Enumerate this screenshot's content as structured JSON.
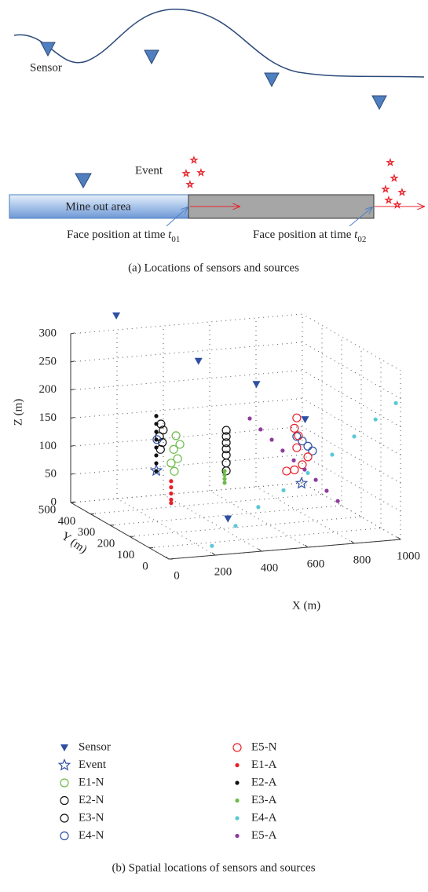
{
  "figure_a": {
    "sensor_label": "Sensor",
    "event_label": "Event",
    "area_label": "Mine out area",
    "face_labels": [
      {
        "text": "Face position at time",
        "var": "t",
        "sub": "01"
      },
      {
        "text": "Face position at time",
        "var": "t",
        "sub": "02"
      }
    ],
    "caption": "(a) Locations of sensors and sources"
  },
  "chart_data": {
    "type": "scatter3d",
    "xlabel": "X (m)",
    "ylabel": "Y (m)",
    "zlabel": "Z (m)",
    "xlim": [
      0,
      1000
    ],
    "ylim": [
      0,
      500
    ],
    "zlim": [
      0,
      300
    ],
    "xticks": [
      0,
      200,
      400,
      600,
      800,
      1000
    ],
    "yticks": [
      0,
      100,
      200,
      300,
      400,
      500
    ],
    "zticks": [
      0,
      50,
      100,
      150,
      200,
      250,
      300
    ],
    "grid": true,
    "series": [
      {
        "name": "Sensor",
        "color": "#2e4fa3",
        "marker": "triangle",
        "x": [
          180,
          450,
          700,
          450,
          800
        ],
        "y": [
          480,
          380,
          380,
          230,
          250
        ],
        "z": [
          330,
          260,
          210,
          10,
          170
        ]
      },
      {
        "name": "Event",
        "color": "#2e4fa3",
        "marker": "star",
        "x": [
          200,
          700
        ],
        "y": [
          300,
          150
        ],
        "z": [
          90,
          80
        ]
      },
      {
        "name": "E1-N",
        "color": "#6dbb4a",
        "marker": "circle",
        "x": [
          285,
          302,
          275,
          292,
          264,
          278
        ],
        "y": [
          300,
          300,
          300,
          300,
          300,
          300
        ],
        "z": [
          149,
          133,
          125,
          108,
          101,
          86
        ]
      },
      {
        "name": "E2-N",
        "color": "#111111",
        "marker": "circle",
        "x": [
          220,
          230,
          214,
          226,
          218
        ],
        "y": [
          300,
          300,
          300,
          300,
          300
        ],
        "z": [
          172,
          161,
          150,
          139,
          127
        ]
      },
      {
        "name": "E3-N",
        "color": "#111111",
        "marker": "circle",
        "x": [
          502,
          502,
          502,
          502,
          502,
          502,
          502
        ],
        "y": [
          300,
          300,
          300,
          300,
          300,
          300,
          300
        ],
        "z": [
          151,
          140,
          129,
          118,
          107,
          93,
          79
        ]
      },
      {
        "name": "E4-N",
        "color": "#2e4fa3",
        "marker": "circle",
        "x": [
          764,
          788,
          812,
          832,
          203
        ],
        "y": [
          250,
          250,
          250,
          250,
          300
        ],
        "z": [
          141,
          132,
          122,
          113,
          145
        ]
      },
      {
        "name": "E5-N",
        "color": "#e8212a",
        "marker": "circle",
        "x": [
          764,
          754,
          771,
          764,
          720,
          754,
          788,
          812
        ],
        "y": [
          250,
          250,
          250,
          250,
          250,
          250,
          250,
          250
        ],
        "z": [
          174,
          156,
          142,
          121,
          81,
          82,
          90,
          103
        ]
      },
      {
        "name": "E1-A",
        "color": "#e8212a",
        "marker": "dot",
        "x": [
          264,
          264,
          264,
          264,
          264
        ],
        "y": [
          300,
          300,
          300,
          300,
          300
        ],
        "z": [
          69,
          58,
          47,
          36,
          30
        ]
      },
      {
        "name": "E2-A",
        "color": "#111111",
        "marker": "dot",
        "x": [
          200,
          200,
          200,
          200,
          200,
          200,
          200,
          200
        ],
        "y": [
          300,
          300,
          300,
          300,
          300,
          300,
          300,
          300
        ],
        "z": [
          187,
          173,
          159,
          145,
          131,
          117,
          103,
          89
        ]
      },
      {
        "name": "E3-A",
        "color": "#6dbb4a",
        "marker": "dot",
        "x": [
          495,
          495,
          495,
          495
        ],
        "y": [
          300,
          300,
          300,
          300
        ],
        "z": [
          79,
          72,
          65,
          58
        ]
      },
      {
        "name": "E4-A",
        "color": "#5bc8d6",
        "marker": "dot",
        "x": [
          980,
          892,
          800,
          705,
          600,
          495,
          386,
          288,
          186
        ],
        "y": [
          0,
          0,
          0,
          0,
          0,
          0,
          0,
          0,
          0
        ],
        "z": [
          243,
          217,
          190,
          161,
          132,
          105,
          79,
          49,
          17
        ]
      },
      {
        "name": "E5-A",
        "color": "#8e3b9b",
        "marker": "dot",
        "x": [
          561,
          608,
          656,
          703,
          751,
          798,
          846,
          893,
          941
        ],
        "y": [
          250,
          250,
          250,
          250,
          250,
          250,
          250,
          250,
          250
        ],
        "z": [
          180,
          159,
          139,
          118,
          99,
          81,
          61,
          40,
          20
        ]
      }
    ]
  },
  "caption_b": "(b) Spatial locations of sensors and sources"
}
